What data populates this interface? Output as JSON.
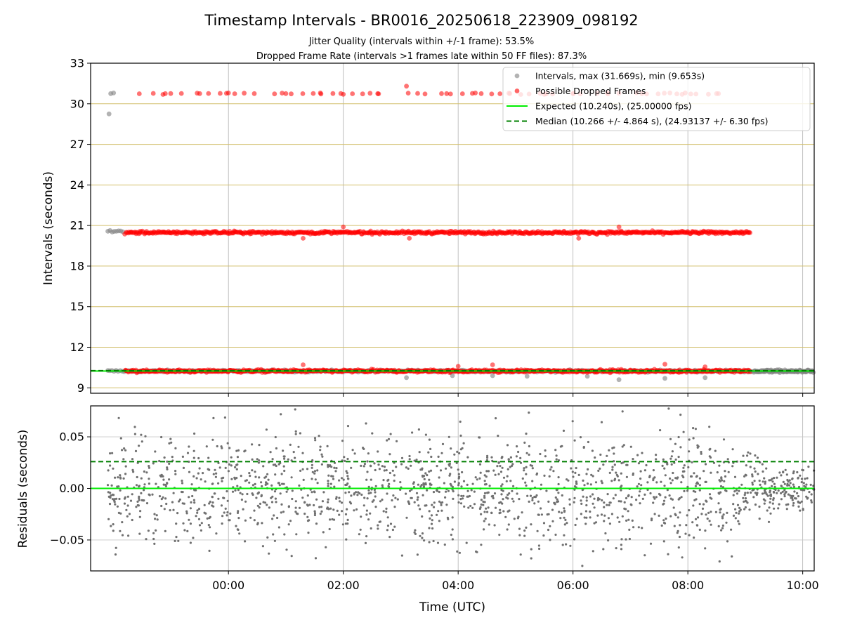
{
  "figure": {
    "title": "Timestamp Intervals - BR0016_20250618_223909_098192",
    "subtitle1": "Jitter Quality (intervals within +/-1 frame): 53.5%",
    "subtitle2": "Dropped Frame Rate (intervals >1 frames late within 50 FF files): 87.3%"
  },
  "chart_data": [
    {
      "type": "scatter",
      "panel": "top",
      "ylabel": "Intervals (seconds)",
      "ylim": [
        8.6,
        33
      ],
      "yticks": [
        9,
        12,
        15,
        18,
        21,
        24,
        27,
        30,
        33
      ],
      "xlim_hours": [
        -2.4,
        10.2
      ],
      "grid": "x-gray, y-goldenrod",
      "legend_position": "top-right",
      "legend": [
        {
          "key": "intervals",
          "label": "Intervals, max (31.669s), min (9.653s)",
          "marker": "circle",
          "color": "#808080"
        },
        {
          "key": "dropped",
          "label": "Possible Dropped Frames",
          "marker": "circle",
          "color": "#ff0000"
        },
        {
          "key": "expected",
          "label": "Expected (10.240s), (25.00000 fps)",
          "line": "solid",
          "color": "#00ee00"
        },
        {
          "key": "median",
          "label": "Median (10.266 +/- 4.864 s), (24.93137 +/- 6.30 fps)",
          "line": "dashed",
          "color": "#008000"
        }
      ],
      "series": [
        {
          "name": "Intervals, max (31.669s), min (9.653s)",
          "color": "#808080",
          "bands": [
            {
              "y": 10.24,
              "x_range": [
                -2.1,
                10.2
              ]
            },
            {
              "y": 20.55,
              "x_range": [
                -2.1,
                -1.8
              ]
            }
          ],
          "points": [
            [
              -2.08,
              29.25
            ],
            [
              -2.05,
              30.75
            ],
            [
              -2.0,
              30.8
            ],
            [
              3.1,
              9.75
            ],
            [
              3.9,
              9.9
            ],
            [
              4.6,
              9.9
            ],
            [
              5.2,
              9.85
            ],
            [
              6.25,
              9.85
            ],
            [
              6.8,
              9.6
            ],
            [
              7.6,
              9.7
            ],
            [
              8.3,
              9.75
            ]
          ]
        },
        {
          "name": "Possible Dropped Frames",
          "color": "#ff0000",
          "bands": [
            {
              "y": 10.24,
              "x_range": [
                -1.8,
                9.1
              ]
            },
            {
              "y": 20.48,
              "x_range": [
                -1.8,
                9.1
              ]
            }
          ],
          "points": [
            [
              -1.1,
              30.75
            ],
            [
              -0.5,
              30.75
            ],
            [
              0.0,
              30.8
            ],
            [
              0.45,
              30.75
            ],
            [
              1.0,
              30.75
            ],
            [
              1.6,
              30.8
            ],
            [
              2.0,
              30.7
            ],
            [
              2.6,
              30.75
            ],
            [
              3.1,
              31.3
            ],
            [
              3.8,
              30.75
            ],
            [
              4.3,
              30.8
            ],
            [
              4.9,
              30.75
            ],
            [
              5.5,
              30.7
            ],
            [
              6.0,
              30.75
            ],
            [
              6.6,
              30.8
            ],
            [
              7.2,
              30.75
            ],
            [
              7.9,
              30.7
            ],
            [
              8.5,
              30.75
            ],
            [
              1.3,
              20.05
            ],
            [
              3.15,
              20.05
            ],
            [
              6.1,
              20.05
            ],
            [
              2.0,
              20.9
            ],
            [
              6.8,
              20.9
            ],
            [
              1.3,
              10.7
            ],
            [
              4.0,
              10.6
            ],
            [
              4.6,
              10.7
            ],
            [
              7.6,
              10.75
            ],
            [
              8.3,
              10.55
            ]
          ]
        }
      ],
      "lines": [
        {
          "name": "Expected (10.240s), (25.00000 fps)",
          "y": 10.24,
          "style": "solid",
          "color": "#00ee00"
        },
        {
          "name": "Median (10.266 +/- 4.864 s), (24.93137 +/- 6.30 fps)",
          "y": 10.266,
          "style": "dashed",
          "color": "#008000"
        }
      ]
    },
    {
      "type": "scatter",
      "panel": "bottom",
      "ylabel": "Residuals (seconds)",
      "xlabel": "Time (UTC)",
      "ylim": [
        -0.08,
        0.08
      ],
      "yticks": [
        -0.05,
        0.0,
        0.05
      ],
      "ytick_labels": [
        "−0.05",
        "0.00",
        "0.05"
      ],
      "xlim_hours": [
        -2.4,
        10.2
      ],
      "xticks_hours": [
        0,
        2,
        4,
        6,
        8,
        10
      ],
      "xtick_labels": [
        "00:00",
        "02:00",
        "04:00",
        "06:00",
        "08:00",
        "10:00"
      ],
      "grid": "on",
      "series": [
        {
          "color": "#808080",
          "x_range": [
            -2.1,
            10.2
          ],
          "y_spread": [
            -0.08,
            0.08
          ],
          "concentrated_near": 0.0
        }
      ],
      "lines": [
        {
          "y": 0.0,
          "style": "solid",
          "color": "#00ee00"
        },
        {
          "y": 0.026,
          "style": "dashed",
          "color": "#008000"
        }
      ]
    }
  ]
}
